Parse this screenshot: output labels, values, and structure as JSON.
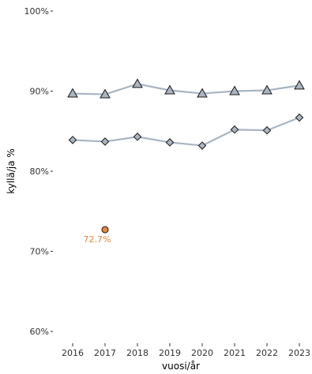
{
  "chart_data": {
    "type": "line",
    "title": "",
    "xlabel": "vuosi/år",
    "ylabel": "kyllä/ja %",
    "x": [
      2016,
      2017,
      2018,
      2019,
      2020,
      2021,
      2022,
      2023
    ],
    "x_tick_labels": [
      "2016",
      "2017",
      "2018",
      "2019",
      "2020",
      "2021",
      "2022",
      "2023"
    ],
    "ylim": [
      60,
      100
    ],
    "y_ticks": [
      60,
      70,
      80,
      90,
      100
    ],
    "y_tick_labels": [
      "60%",
      "70%",
      "80%",
      "90%",
      "100%"
    ],
    "grid": false,
    "legend": "none",
    "series": [
      {
        "marker": "triangle",
        "line_color": "#a9b5c1",
        "marker_fill": "#a9b5c1",
        "values": [
          89.7,
          89.6,
          90.9,
          90.1,
          89.7,
          90.0,
          90.1,
          90.7
        ]
      },
      {
        "marker": "diamond",
        "line_color": "#a9b5c1",
        "marker_fill": "#a9b5c1",
        "values": [
          83.9,
          83.7,
          84.3,
          83.6,
          83.2,
          85.2,
          85.1,
          86.7
        ]
      }
    ],
    "highlight_points": [
      {
        "x": 2017,
        "y": 72.7,
        "label": "72.7%",
        "color": "#e8853c",
        "marker": "circle"
      }
    ]
  }
}
